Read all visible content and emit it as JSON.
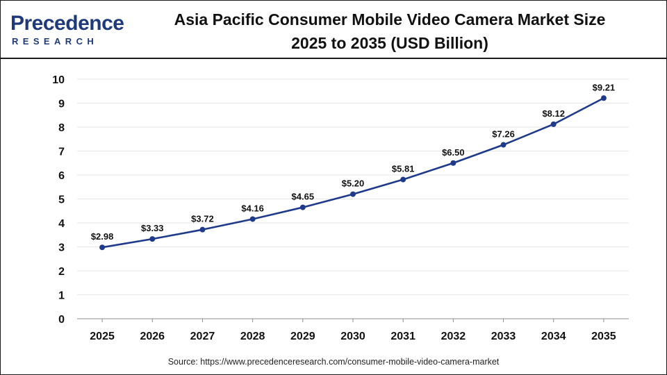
{
  "header": {
    "logo_text": "Precedence",
    "logo_subtext": "RESEARCH",
    "title_line1": "Asia Pacific Consumer Mobile Video Camera Market Size",
    "title_line2": "2025 to 2035 (USD Billion)"
  },
  "source_text": "Source: https://www.precedenceresearch.com/consumer-mobile-video-camera-market",
  "colors": {
    "line": "#1f3a8a",
    "brand": "#1f3a7a",
    "grid": "#e6e6e6",
    "text": "#111111"
  },
  "chart_data": {
    "type": "line",
    "categories": [
      "2025",
      "2026",
      "2027",
      "2028",
      "2029",
      "2030",
      "2031",
      "2032",
      "2033",
      "2034",
      "2035"
    ],
    "series": [
      {
        "values": [
          2.98,
          3.33,
          3.72,
          4.16,
          4.65,
          5.2,
          5.81,
          6.5,
          7.26,
          8.12,
          9.21
        ],
        "labels": [
          "$2.98",
          "$3.33",
          "$3.72",
          "$4.16",
          "$4.65",
          "$5.20",
          "$5.81",
          "$6.50",
          "$7.26",
          "$8.12",
          "$9.21"
        ]
      }
    ],
    "title": "Asia Pacific Consumer Mobile Video Camera Market Size 2025 to 2035 (USD Billion)",
    "xlabel": "",
    "ylabel": "",
    "ylim": [
      0,
      10
    ],
    "yticks": [
      "0",
      "1",
      "2",
      "3",
      "4",
      "5",
      "6",
      "7",
      "8",
      "9",
      "10"
    ],
    "grid": true,
    "legend": "none"
  }
}
